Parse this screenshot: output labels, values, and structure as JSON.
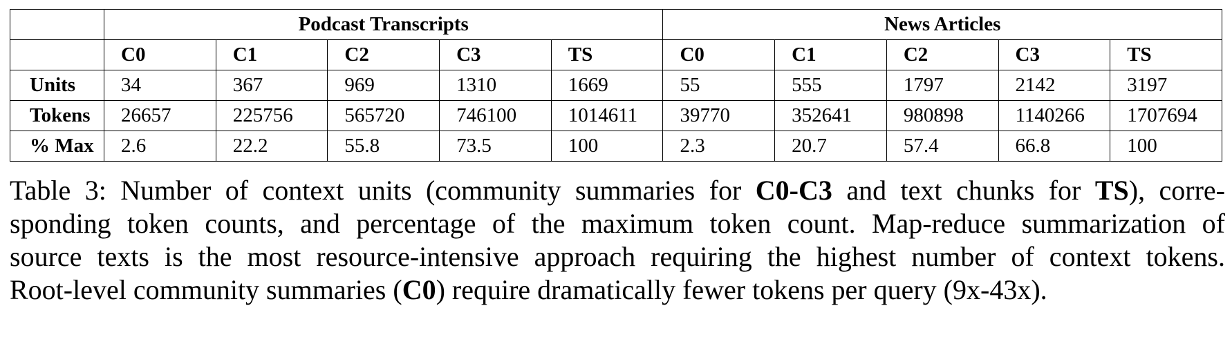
{
  "table": {
    "groups": [
      "Podcast Transcripts",
      "News Articles"
    ],
    "columns": [
      "C0",
      "C1",
      "C2",
      "C3",
      "TS",
      "C0",
      "C1",
      "C2",
      "C3",
      "TS"
    ],
    "rows": [
      {
        "label": "Units",
        "cells": [
          "34",
          "367",
          "969",
          "1310",
          "1669",
          "55",
          "555",
          "1797",
          "2142",
          "3197"
        ]
      },
      {
        "label": "Tokens",
        "cells": [
          "26657",
          "225756",
          "565720",
          "746100",
          "1014611",
          "39770",
          "352641",
          "980898",
          "1140266",
          "1707694"
        ]
      },
      {
        "label": "% Max",
        "cells": [
          "2.6",
          "22.2",
          "55.8",
          "73.5",
          "100",
          "2.3",
          "20.7",
          "57.4",
          "66.8",
          "100"
        ]
      }
    ]
  },
  "caption": {
    "l1_a": "Table 3: Number of context units (community summaries for ",
    "l1_b": "C0-C3",
    "l1_c": " and text chunks for ",
    "l1_d": "TS",
    "l1_e": "), corre-",
    "l2": "sponding token counts, and percentage of the maximum token count. Map-reduce summarization of",
    "l3": "source texts is the most resource-intensive approach requiring the highest number of context tokens.",
    "l4_a": "Root-level community summaries (",
    "l4_b": "C0",
    "l4_c": ") require dramatically fewer tokens per query (9x-43x)."
  }
}
